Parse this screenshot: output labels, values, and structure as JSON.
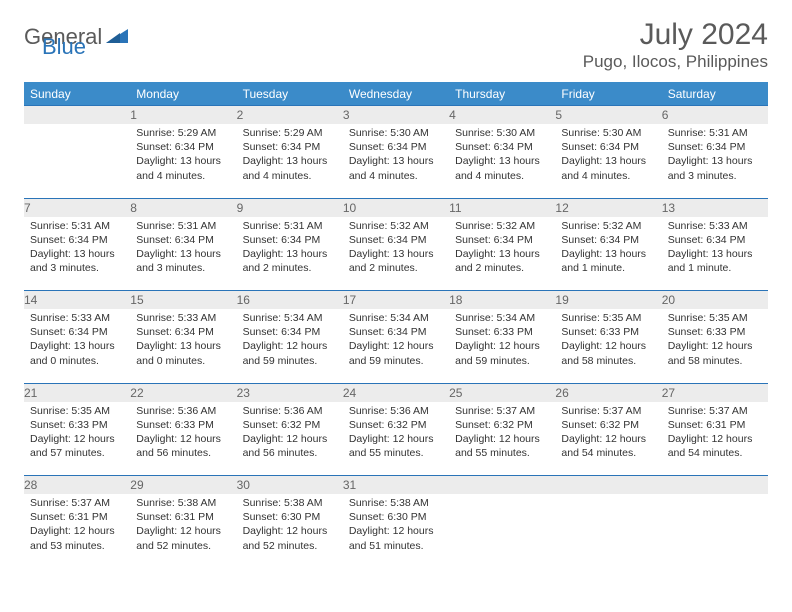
{
  "logo": {
    "text1": "General",
    "text2": "Blue"
  },
  "title": "July 2024",
  "location": "Pugo, Ilocos, Philippines",
  "colors": {
    "header_bg": "#3b8bc9",
    "header_text": "#ffffff",
    "rule": "#2a74b8",
    "daynum_bg": "#ececec",
    "logo_gray": "#5a5a5a",
    "logo_blue": "#2a74b8"
  },
  "weekdays": [
    "Sunday",
    "Monday",
    "Tuesday",
    "Wednesday",
    "Thursday",
    "Friday",
    "Saturday"
  ],
  "weeks": [
    [
      {
        "num": "",
        "lines": []
      },
      {
        "num": "1",
        "lines": [
          "Sunrise: 5:29 AM",
          "Sunset: 6:34 PM",
          "Daylight: 13 hours",
          "and 4 minutes."
        ]
      },
      {
        "num": "2",
        "lines": [
          "Sunrise: 5:29 AM",
          "Sunset: 6:34 PM",
          "Daylight: 13 hours",
          "and 4 minutes."
        ]
      },
      {
        "num": "3",
        "lines": [
          "Sunrise: 5:30 AM",
          "Sunset: 6:34 PM",
          "Daylight: 13 hours",
          "and 4 minutes."
        ]
      },
      {
        "num": "4",
        "lines": [
          "Sunrise: 5:30 AM",
          "Sunset: 6:34 PM",
          "Daylight: 13 hours",
          "and 4 minutes."
        ]
      },
      {
        "num": "5",
        "lines": [
          "Sunrise: 5:30 AM",
          "Sunset: 6:34 PM",
          "Daylight: 13 hours",
          "and 4 minutes."
        ]
      },
      {
        "num": "6",
        "lines": [
          "Sunrise: 5:31 AM",
          "Sunset: 6:34 PM",
          "Daylight: 13 hours",
          "and 3 minutes."
        ]
      }
    ],
    [
      {
        "num": "7",
        "lines": [
          "Sunrise: 5:31 AM",
          "Sunset: 6:34 PM",
          "Daylight: 13 hours",
          "and 3 minutes."
        ]
      },
      {
        "num": "8",
        "lines": [
          "Sunrise: 5:31 AM",
          "Sunset: 6:34 PM",
          "Daylight: 13 hours",
          "and 3 minutes."
        ]
      },
      {
        "num": "9",
        "lines": [
          "Sunrise: 5:31 AM",
          "Sunset: 6:34 PM",
          "Daylight: 13 hours",
          "and 2 minutes."
        ]
      },
      {
        "num": "10",
        "lines": [
          "Sunrise: 5:32 AM",
          "Sunset: 6:34 PM",
          "Daylight: 13 hours",
          "and 2 minutes."
        ]
      },
      {
        "num": "11",
        "lines": [
          "Sunrise: 5:32 AM",
          "Sunset: 6:34 PM",
          "Daylight: 13 hours",
          "and 2 minutes."
        ]
      },
      {
        "num": "12",
        "lines": [
          "Sunrise: 5:32 AM",
          "Sunset: 6:34 PM",
          "Daylight: 13 hours",
          "and 1 minute."
        ]
      },
      {
        "num": "13",
        "lines": [
          "Sunrise: 5:33 AM",
          "Sunset: 6:34 PM",
          "Daylight: 13 hours",
          "and 1 minute."
        ]
      }
    ],
    [
      {
        "num": "14",
        "lines": [
          "Sunrise: 5:33 AM",
          "Sunset: 6:34 PM",
          "Daylight: 13 hours",
          "and 0 minutes."
        ]
      },
      {
        "num": "15",
        "lines": [
          "Sunrise: 5:33 AM",
          "Sunset: 6:34 PM",
          "Daylight: 13 hours",
          "and 0 minutes."
        ]
      },
      {
        "num": "16",
        "lines": [
          "Sunrise: 5:34 AM",
          "Sunset: 6:34 PM",
          "Daylight: 12 hours",
          "and 59 minutes."
        ]
      },
      {
        "num": "17",
        "lines": [
          "Sunrise: 5:34 AM",
          "Sunset: 6:34 PM",
          "Daylight: 12 hours",
          "and 59 minutes."
        ]
      },
      {
        "num": "18",
        "lines": [
          "Sunrise: 5:34 AM",
          "Sunset: 6:33 PM",
          "Daylight: 12 hours",
          "and 59 minutes."
        ]
      },
      {
        "num": "19",
        "lines": [
          "Sunrise: 5:35 AM",
          "Sunset: 6:33 PM",
          "Daylight: 12 hours",
          "and 58 minutes."
        ]
      },
      {
        "num": "20",
        "lines": [
          "Sunrise: 5:35 AM",
          "Sunset: 6:33 PM",
          "Daylight: 12 hours",
          "and 58 minutes."
        ]
      }
    ],
    [
      {
        "num": "21",
        "lines": [
          "Sunrise: 5:35 AM",
          "Sunset: 6:33 PM",
          "Daylight: 12 hours",
          "and 57 minutes."
        ]
      },
      {
        "num": "22",
        "lines": [
          "Sunrise: 5:36 AM",
          "Sunset: 6:33 PM",
          "Daylight: 12 hours",
          "and 56 minutes."
        ]
      },
      {
        "num": "23",
        "lines": [
          "Sunrise: 5:36 AM",
          "Sunset: 6:32 PM",
          "Daylight: 12 hours",
          "and 56 minutes."
        ]
      },
      {
        "num": "24",
        "lines": [
          "Sunrise: 5:36 AM",
          "Sunset: 6:32 PM",
          "Daylight: 12 hours",
          "and 55 minutes."
        ]
      },
      {
        "num": "25",
        "lines": [
          "Sunrise: 5:37 AM",
          "Sunset: 6:32 PM",
          "Daylight: 12 hours",
          "and 55 minutes."
        ]
      },
      {
        "num": "26",
        "lines": [
          "Sunrise: 5:37 AM",
          "Sunset: 6:32 PM",
          "Daylight: 12 hours",
          "and 54 minutes."
        ]
      },
      {
        "num": "27",
        "lines": [
          "Sunrise: 5:37 AM",
          "Sunset: 6:31 PM",
          "Daylight: 12 hours",
          "and 54 minutes."
        ]
      }
    ],
    [
      {
        "num": "28",
        "lines": [
          "Sunrise: 5:37 AM",
          "Sunset: 6:31 PM",
          "Daylight: 12 hours",
          "and 53 minutes."
        ]
      },
      {
        "num": "29",
        "lines": [
          "Sunrise: 5:38 AM",
          "Sunset: 6:31 PM",
          "Daylight: 12 hours",
          "and 52 minutes."
        ]
      },
      {
        "num": "30",
        "lines": [
          "Sunrise: 5:38 AM",
          "Sunset: 6:30 PM",
          "Daylight: 12 hours",
          "and 52 minutes."
        ]
      },
      {
        "num": "31",
        "lines": [
          "Sunrise: 5:38 AM",
          "Sunset: 6:30 PM",
          "Daylight: 12 hours",
          "and 51 minutes."
        ]
      },
      {
        "num": "",
        "lines": []
      },
      {
        "num": "",
        "lines": []
      },
      {
        "num": "",
        "lines": []
      }
    ]
  ]
}
